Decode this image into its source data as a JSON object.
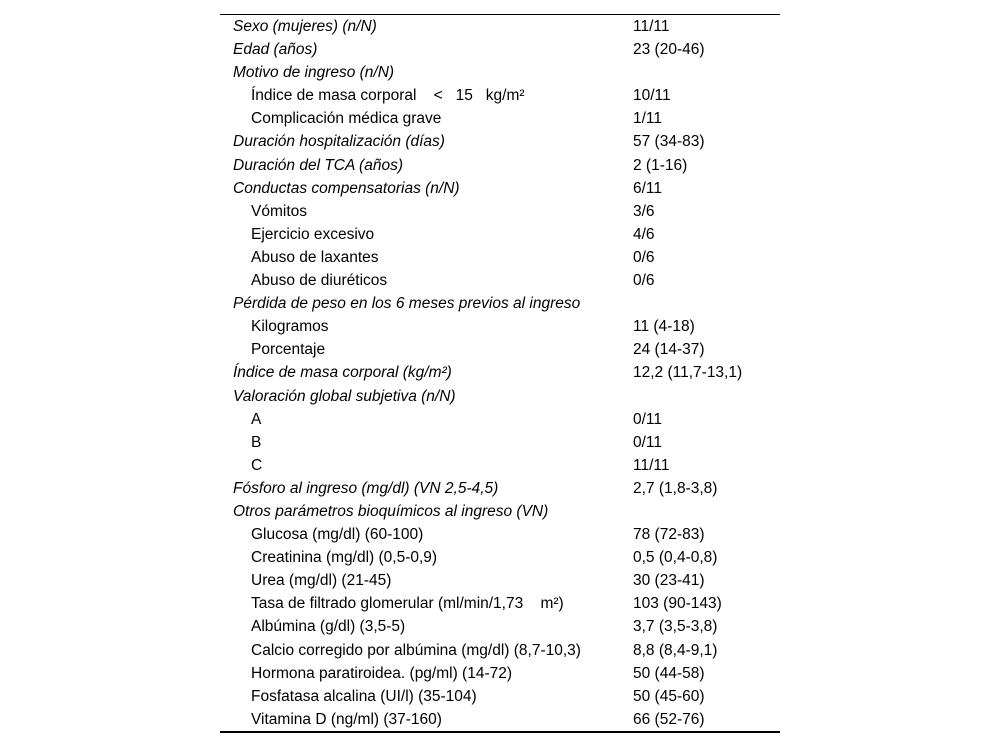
{
  "colors": {
    "background": "#ffffff",
    "text": "#000000",
    "rule": "#000000"
  },
  "table": {
    "rows": [
      {
        "label": "Sexo (mujeres) (n/N)",
        "value": "11/11",
        "italic": true,
        "indent": false
      },
      {
        "label": "Edad (años)",
        "value": "23 (20-46)",
        "italic": true,
        "indent": false
      },
      {
        "label": "Motivo de ingreso (n/N)",
        "value": "",
        "italic": true,
        "indent": false
      },
      {
        "label": "Índice de masa corporal    <   15   kg/m²",
        "value": "10/11",
        "italic": false,
        "indent": true
      },
      {
        "label": "Complicación médica grave",
        "value": "1/11",
        "italic": false,
        "indent": true
      },
      {
        "label": "Duración hospitalización (días)",
        "value": "57 (34-83)",
        "italic": true,
        "indent": false
      },
      {
        "label": "Duración del TCA (años)",
        "value": "2 (1-16)",
        "italic": true,
        "indent": false
      },
      {
        "label": "Conductas compensatorias (n/N)",
        "value": "6/11",
        "italic": true,
        "indent": false
      },
      {
        "label": "Vómitos",
        "value": "3/6",
        "italic": false,
        "indent": true
      },
      {
        "label": "Ejercicio excesivo",
        "value": "4/6",
        "italic": false,
        "indent": true
      },
      {
        "label": "Abuso de laxantes",
        "value": "0/6",
        "italic": false,
        "indent": true
      },
      {
        "label": "Abuso de diuréticos",
        "value": "0/6",
        "italic": false,
        "indent": true
      },
      {
        "label": "Pérdida de peso en los 6 meses previos al ingreso",
        "value": "",
        "italic": true,
        "indent": false
      },
      {
        "label": "Kilogramos",
        "value": "11 (4-18)",
        "italic": false,
        "indent": true
      },
      {
        "label": "Porcentaje",
        "value": "24 (14-37)",
        "italic": false,
        "indent": true
      },
      {
        "label": "Índice de masa corporal (kg/m²)",
        "value": "12,2 (11,7-13,1)",
        "italic": true,
        "indent": false
      },
      {
        "label": "Valoración global subjetiva (n/N)",
        "value": "",
        "italic": true,
        "indent": false
      },
      {
        "label": "A",
        "value": "0/11",
        "italic": false,
        "indent": true
      },
      {
        "label": "B",
        "value": "0/11",
        "italic": false,
        "indent": true
      },
      {
        "label": "C",
        "value": "11/11",
        "italic": false,
        "indent": true
      },
      {
        "label": "Fósforo al ingreso (mg/dl) (VN 2,5-4,5)",
        "value": "2,7 (1,8-3,8)",
        "italic": true,
        "indent": false
      },
      {
        "label": "Otros parámetros bioquímicos al ingreso (VN)",
        "value": "",
        "italic": true,
        "indent": false
      },
      {
        "label": "Glucosa (mg/dl) (60-100)",
        "value": "78 (72-83)",
        "italic": false,
        "indent": true
      },
      {
        "label": "Creatinina (mg/dl) (0,5-0,9)",
        "value": "0,5 (0,4-0,8)",
        "italic": false,
        "indent": true
      },
      {
        "label": "Urea (mg/dl) (21-45)",
        "value": "30 (23-41)",
        "italic": false,
        "indent": true
      },
      {
        "label": "Tasa de filtrado glomerular (ml/min/1,73    m²)",
        "value": "103 (90-143)",
        "italic": false,
        "indent": true
      },
      {
        "label": "Albúmina (g/dl) (3,5-5)",
        "value": "3,7 (3,5-3,8)",
        "italic": false,
        "indent": true
      },
      {
        "label": "Calcio corregido por albúmina (mg/dl) (8,7-10,3)",
        "value": "8,8 (8,4-9,1)",
        "italic": false,
        "indent": true
      },
      {
        "label": "Hormona paratiroidea. (pg/ml) (14-72)",
        "value": "50 (44-58)",
        "italic": false,
        "indent": true
      },
      {
        "label": "Fosfatasa alcalina (UI/l) (35-104)",
        "value": "50 (45-60)",
        "italic": false,
        "indent": true
      },
      {
        "label": "Vitamina D (ng/ml) (37-160)",
        "value": "66 (52-76)",
        "italic": false,
        "indent": true
      }
    ]
  }
}
